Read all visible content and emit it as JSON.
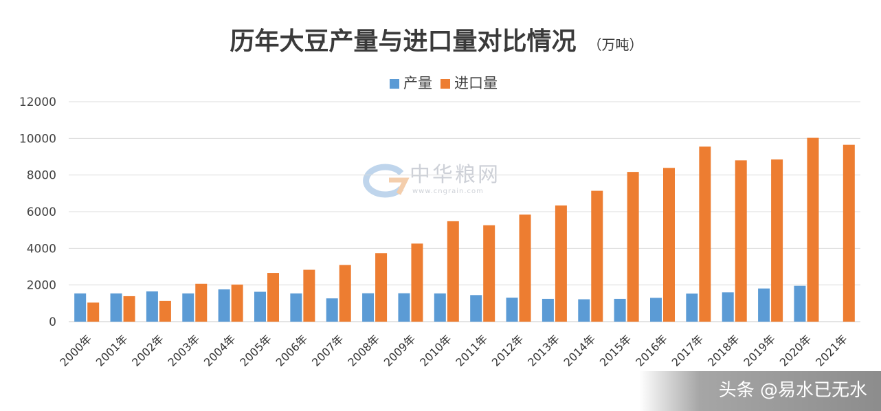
{
  "chart_data": {
    "type": "bar",
    "title": "历年大豆产量与进口量对比情况",
    "unit": "（万吨）",
    "categories": [
      "2000年",
      "2001年",
      "2002年",
      "2003年",
      "2004年",
      "2005年",
      "2006年",
      "2007年",
      "2008年",
      "2009年",
      "2010年",
      "2011年",
      "2012年",
      "2013年",
      "2014年",
      "2015年",
      "2016年",
      "2017年",
      "2018年",
      "2019年",
      "2020年",
      "2021年"
    ],
    "series": [
      {
        "name": "产量",
        "color": "#5b9bd5",
        "values": [
          1540,
          1540,
          1650,
          1540,
          1760,
          1630,
          1540,
          1270,
          1550,
          1550,
          1540,
          1450,
          1310,
          1240,
          1220,
          1240,
          1300,
          1530,
          1600,
          1810,
          1960,
          null
        ]
      },
      {
        "name": "进口量",
        "color": "#ed7d31",
        "values": [
          1040,
          1390,
          1130,
          2070,
          2020,
          2660,
          2830,
          3090,
          3740,
          4260,
          5480,
          5260,
          5840,
          6340,
          7140,
          8170,
          8390,
          9550,
          8800,
          8850,
          10030,
          9650
        ]
      }
    ],
    "ylim": [
      0,
      12000
    ],
    "yticks": [
      0,
      2000,
      4000,
      6000,
      8000,
      10000,
      12000
    ],
    "grid": true,
    "legend_position": "top-center"
  },
  "watermark": {
    "brand": "中华粮网",
    "url": "www.cngrain.com"
  },
  "credit": {
    "text": "头条 @易水已无水"
  }
}
